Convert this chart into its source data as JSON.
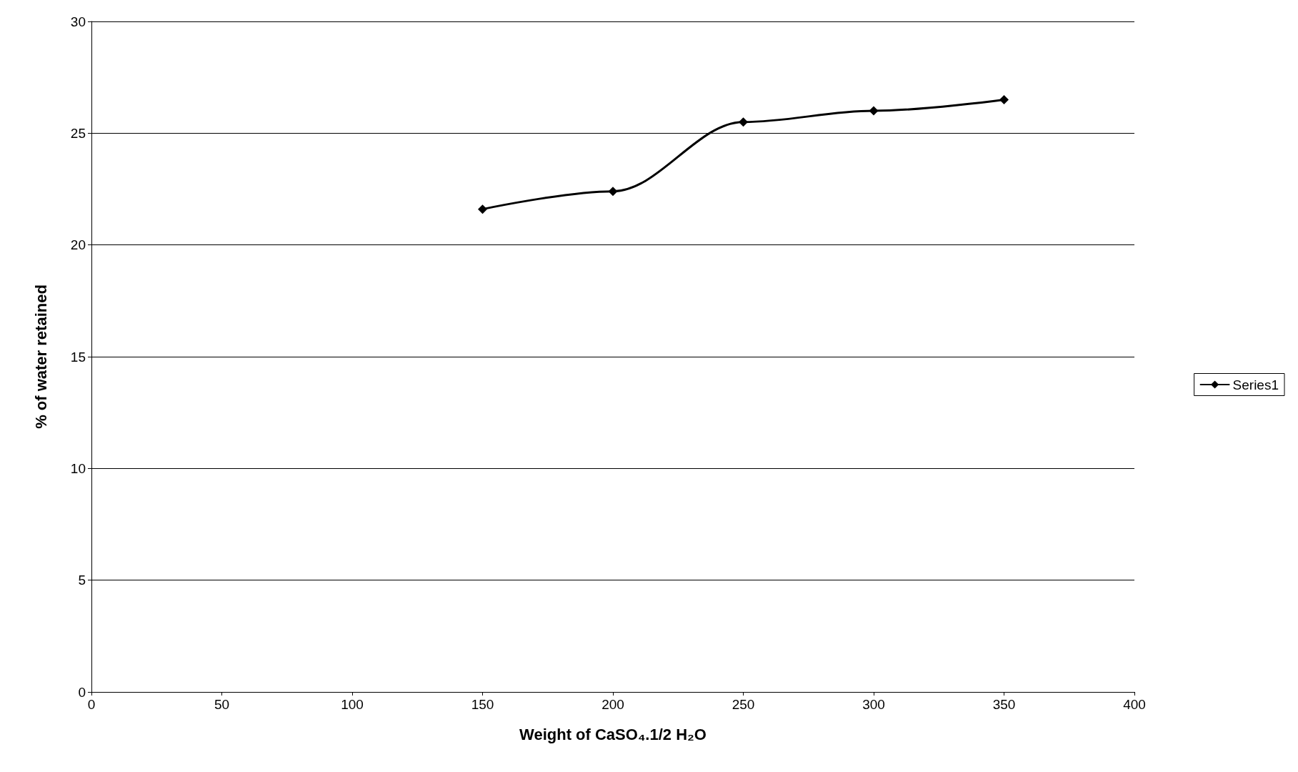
{
  "chart_data": {
    "type": "line",
    "xlabel": "Weight of CaSO₄.1/2 H₂O",
    "ylabel": "% of water retained",
    "x": [
      150,
      200,
      250,
      300,
      350
    ],
    "series": [
      {
        "name": "Series1",
        "color": "#000000",
        "values": [
          21.6,
          22.4,
          25.5,
          26.0,
          26.5
        ]
      }
    ],
    "xlim": [
      0,
      400
    ],
    "xticks": [
      0,
      50,
      100,
      150,
      200,
      250,
      300,
      350,
      400
    ],
    "ylim": [
      0,
      30
    ],
    "yticks": [
      0,
      5,
      10,
      15,
      20,
      25,
      30
    ],
    "grid": "y",
    "legend": "right",
    "marker": "diamond",
    "line_style": "solid"
  }
}
